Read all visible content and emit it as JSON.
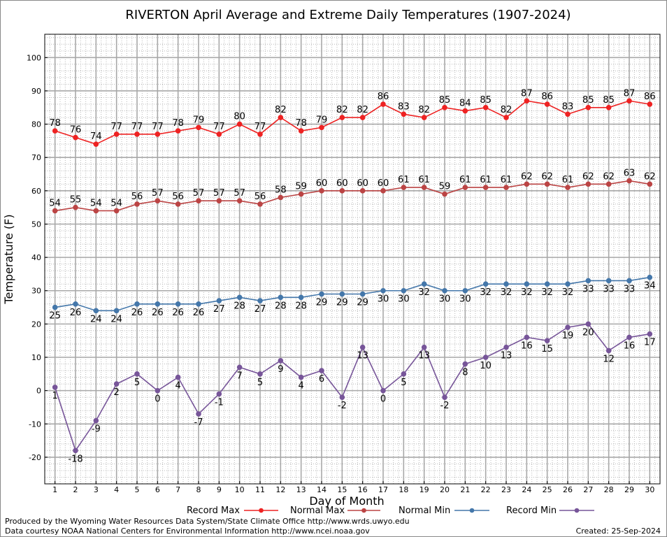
{
  "chart_data": {
    "type": "line",
    "title": "RIVERTON April Average and Extreme Daily Temperatures (1907-2024)",
    "xlabel": "Day of Month",
    "ylabel": "Temperature (F)",
    "xlim": [
      0.5,
      30.5
    ],
    "ylim": [
      -28,
      107
    ],
    "yticks": [
      -20,
      -10,
      0,
      10,
      20,
      30,
      40,
      50,
      60,
      70,
      80,
      90,
      100
    ],
    "x": [
      1,
      2,
      3,
      4,
      5,
      6,
      7,
      8,
      9,
      10,
      11,
      12,
      13,
      14,
      15,
      16,
      17,
      18,
      19,
      20,
      21,
      22,
      23,
      24,
      25,
      26,
      27,
      28,
      29,
      30
    ],
    "grid": true,
    "legend_position": "bottom",
    "series": [
      {
        "name": "Record Max",
        "color": "#ee2222",
        "label_position": "above",
        "values": [
          78,
          76,
          74,
          77,
          77,
          77,
          78,
          79,
          77,
          80,
          77,
          82,
          78,
          79,
          82,
          82,
          86,
          83,
          82,
          85,
          84,
          85,
          82,
          87,
          86,
          83,
          85,
          85,
          87,
          86
        ]
      },
      {
        "name": "Normal Max",
        "color": "#bb4444",
        "label_position": "above",
        "values": [
          54,
          55,
          54,
          54,
          56,
          57,
          56,
          57,
          57,
          57,
          56,
          58,
          59,
          60,
          60,
          60,
          60,
          61,
          61,
          59,
          61,
          61,
          61,
          62,
          62,
          61,
          62,
          62,
          63,
          62
        ]
      },
      {
        "name": "Normal Min",
        "color": "#4477aa",
        "label_position": "below",
        "values": [
          25,
          26,
          24,
          24,
          26,
          26,
          26,
          26,
          27,
          28,
          27,
          28,
          28,
          29,
          29,
          29,
          30,
          30,
          32,
          30,
          30,
          32,
          32,
          32,
          32,
          32,
          33,
          33,
          33,
          34
        ]
      },
      {
        "name": "Record Min",
        "color": "#775599",
        "label_position": "below",
        "values": [
          1,
          -18,
          -9,
          2,
          5,
          0,
          4,
          -7,
          -1,
          7,
          5,
          9,
          4,
          6,
          -2,
          13,
          0,
          5,
          13,
          -2,
          8,
          10,
          13,
          16,
          15,
          19,
          20,
          12,
          16,
          17
        ]
      }
    ]
  },
  "footer": {
    "produced_by": "Produced by the Wyoming Water Resources Data System/State Climate Office http://www.wrds.uwyo.edu",
    "courtesy": "Data courtesy NOAA National Centers for Environmental Information http://www.ncei.noaa.gov",
    "created": "Created: 25-Sep-2024"
  }
}
